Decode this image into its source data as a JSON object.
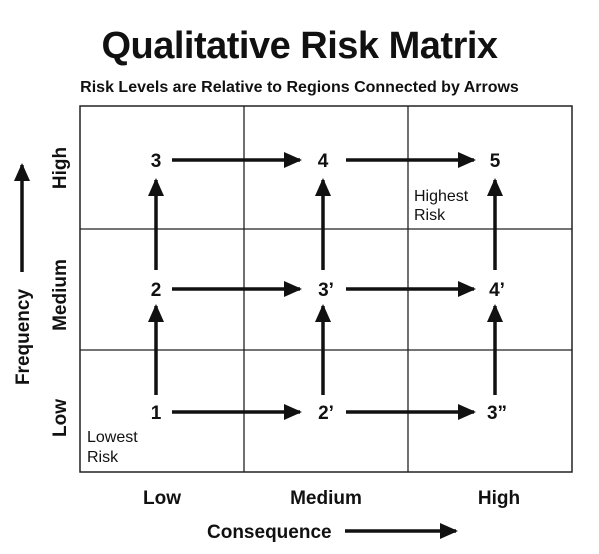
{
  "title": "Qualitative Risk Matrix",
  "subtitle": "Risk Levels are Relative to Regions Connected by Arrows",
  "x_axis": {
    "title": "Consequence",
    "ticks": [
      "Low",
      "Medium",
      "High"
    ]
  },
  "y_axis": {
    "title": "Frequency",
    "ticks": [
      "Low",
      "Medium",
      "High"
    ]
  },
  "cells": {
    "high_low": "3",
    "high_medium": "4",
    "high_high": "5",
    "medium_low": "2",
    "medium_medium": "3’",
    "medium_high": "4’",
    "low_low": "1",
    "low_medium": "2’",
    "low_high": "3”"
  },
  "notes": {
    "highest_line1": "Highest",
    "highest_line2": "Risk",
    "lowest_line1": "Lowest",
    "lowest_line2": "Risk"
  },
  "colors": {
    "ink": "#111111",
    "grid": "#222222",
    "background": "#ffffff"
  }
}
